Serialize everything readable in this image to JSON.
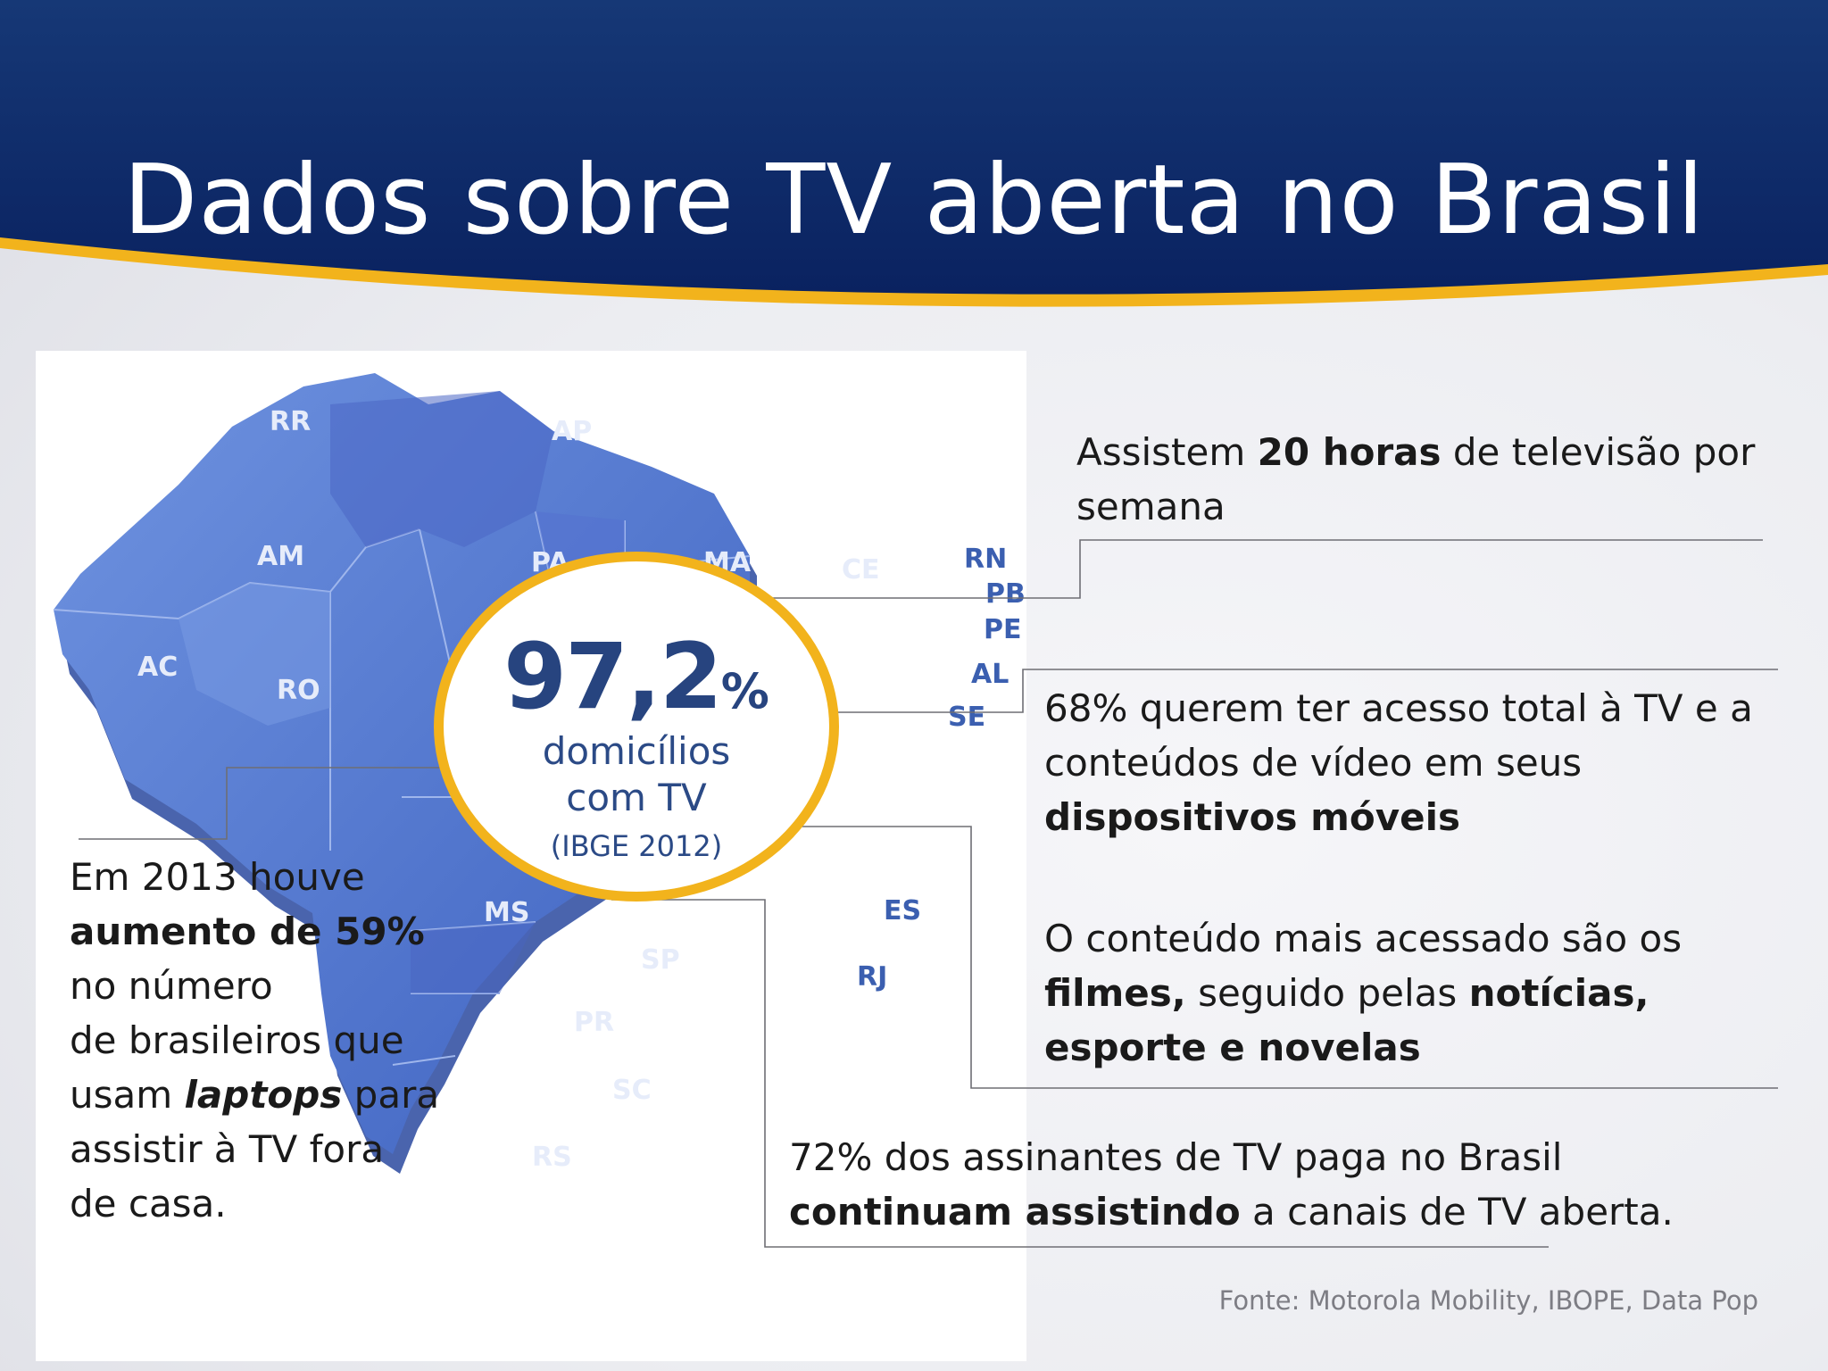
{
  "slide": {
    "title": "Dados sobre TV aberta no Brasil",
    "colors": {
      "header_blue": "#0e2a66",
      "accent_yellow": "#f2b31c",
      "map_blue": "#5f83d6"
    }
  },
  "map": {
    "states": [
      "RR",
      "AP",
      "AM",
      "PA",
      "MA",
      "CE",
      "RN",
      "PB",
      "PE",
      "AL",
      "SE",
      "AC",
      "RO",
      "MS",
      "SP",
      "ES",
      "RJ",
      "PR",
      "SC",
      "RS"
    ]
  },
  "badge": {
    "number": "97,2",
    "percent_sign": "%",
    "line1": "domicílios",
    "line2": "com TV",
    "source": "(IBGE 2012)"
  },
  "stats": {
    "hours": {
      "pre": "Assistem ",
      "bold": "20 horas",
      "post": " de televisão por semana"
    },
    "mobile": {
      "pre": "68% querem ter acesso total à TV e a conteúdos de vídeo em seus ",
      "bold": "dispositivos móveis"
    },
    "content": {
      "pre": "O conteúdo mais acessado são os ",
      "bold1": "filmes,",
      "mid": " seguido pelas ",
      "bold2": "notícias, esporte e novelas"
    },
    "paid": {
      "pre": "72% dos assinantes de TV paga no Brasil ",
      "bold": "continuam assistindo",
      "post": " a canais de TV aberta."
    },
    "laptops": {
      "l1": "Em 2013 houve",
      "bold1": "aumento de 59%",
      "l3": "no número",
      "l4": "de brasileiros que",
      "l5pre": "usam ",
      "l5bold": "laptops",
      "l5post": " para",
      "l6": "assistir à TV fora",
      "l7": "de casa."
    }
  },
  "footer": {
    "source": "Fonte: Motorola Mobility, IBOPE, Data Pop"
  }
}
